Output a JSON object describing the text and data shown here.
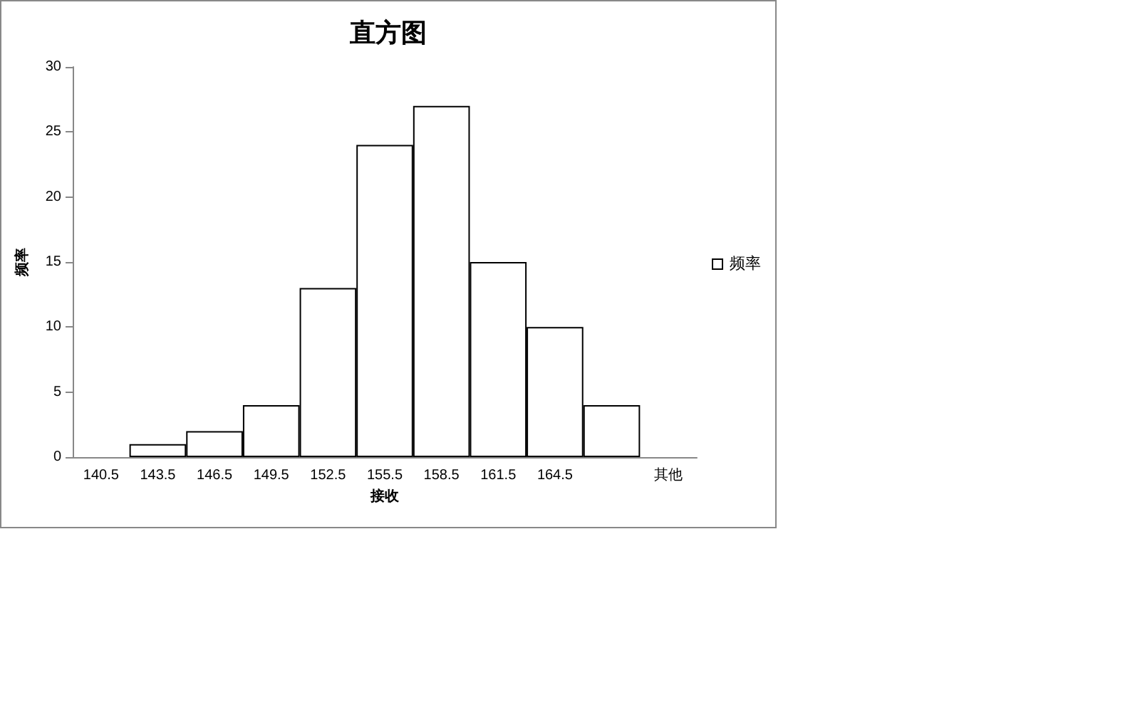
{
  "chart_data": {
    "type": "bar",
    "title": "直方图",
    "xlabel": "接收",
    "ylabel": "频率",
    "categories": [
      "140.5",
      "143.5",
      "146.5",
      "149.5",
      "152.5",
      "155.5",
      "158.5",
      "161.5",
      "164.5",
      null,
      "其他"
    ],
    "series": [
      {
        "name": "频率",
        "color": "#ffffff",
        "values": [
          0,
          1,
          2,
          4,
          13,
          24,
          27,
          15,
          10,
          4,
          0
        ]
      }
    ],
    "ylim": [
      0,
      30
    ],
    "yticks": [
      0,
      5,
      10,
      15,
      20,
      25,
      30
    ],
    "grid": false,
    "legend": "right"
  }
}
